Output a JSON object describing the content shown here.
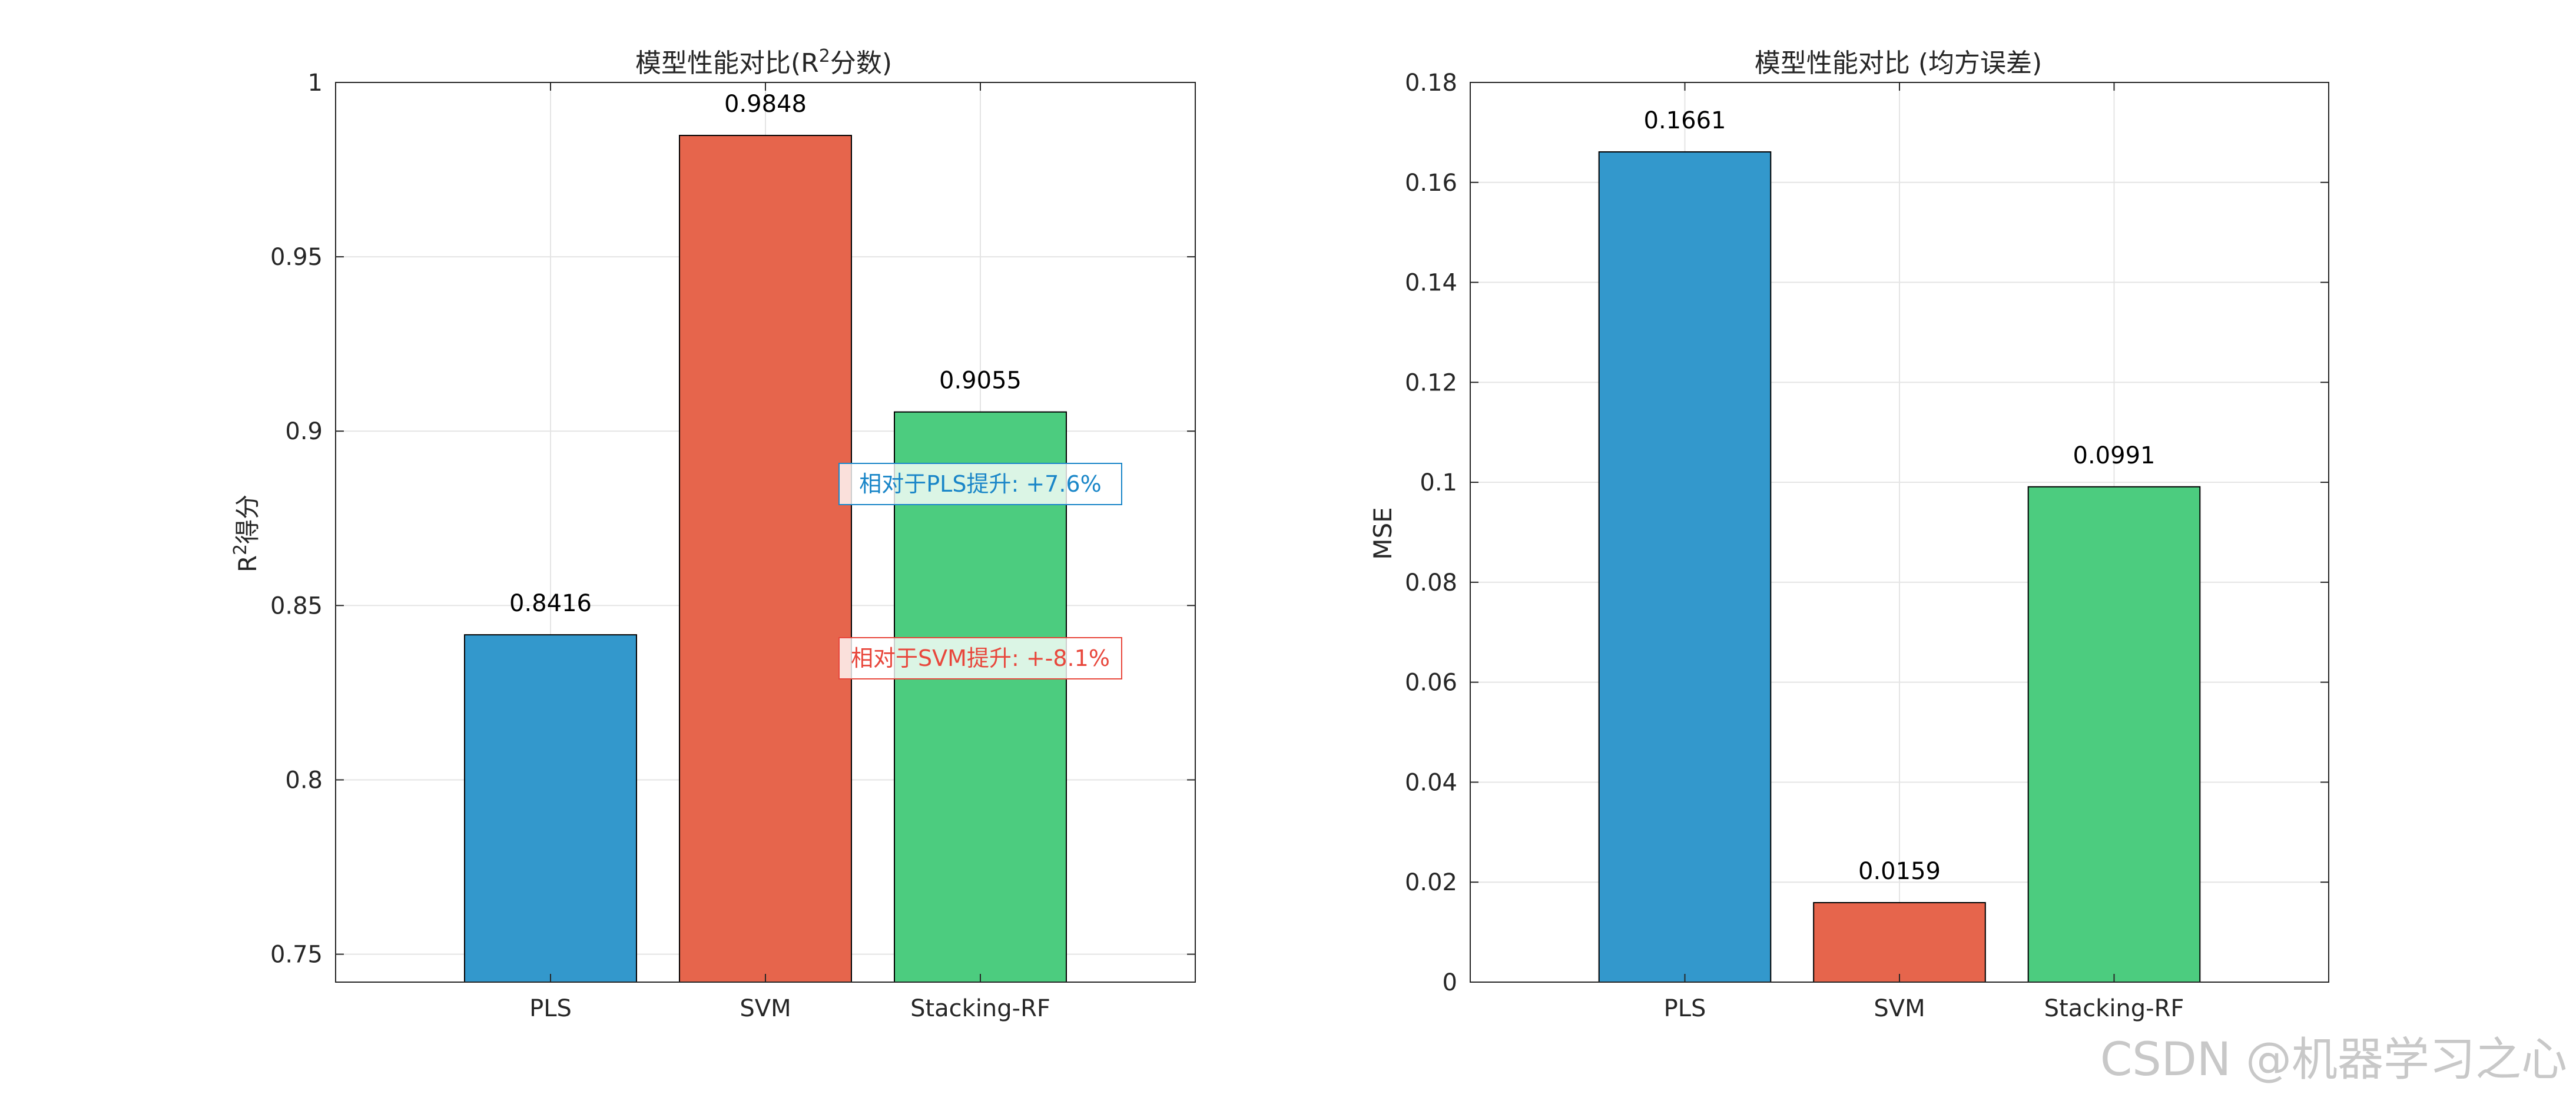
{
  "chart_data": [
    {
      "type": "bar",
      "title_prefix": "模型性能对比(R",
      "title_sup": "2",
      "title_suffix": "分数)",
      "ylabel_prefix": "R",
      "ylabel_sup": "2",
      "ylabel_suffix": "得分",
      "xlabel": "",
      "categories": [
        "PLS",
        "SVM",
        "Stacking-RF"
      ],
      "values": [
        0.8416,
        0.9848,
        0.9055
      ],
      "data_labels": [
        "0.8416",
        "0.9848",
        "0.9055"
      ],
      "colors": [
        "#3398cc",
        "#e6654c",
        "#4ccc7f"
      ],
      "ylim": [
        0.742,
        1.0
      ],
      "yticks": [
        0.75,
        0.8,
        0.85,
        0.9,
        0.95,
        1
      ],
      "ytick_labels": [
        "0.75",
        "0.8",
        "0.85",
        "0.9",
        "0.95",
        "1"
      ],
      "grid": true,
      "annotations": [
        {
          "text": "相对于PLS提升: +7.6%",
          "color": "#1a86c8",
          "attached_to": "Stacking-RF"
        },
        {
          "text": "相对于SVM提升: +-8.1%",
          "color": "#e8473c",
          "attached_to": "Stacking-RF"
        }
      ]
    },
    {
      "type": "bar",
      "title": "模型性能对比 (均方误差)",
      "ylabel": "MSE",
      "xlabel": "",
      "categories": [
        "PLS",
        "SVM",
        "Stacking-RF"
      ],
      "values": [
        0.1661,
        0.0159,
        0.0991
      ],
      "data_labels": [
        "0.1661",
        "0.0159",
        "0.0991"
      ],
      "colors": [
        "#3398cc",
        "#e6654c",
        "#4ccc7f"
      ],
      "ylim": [
        0,
        0.18
      ],
      "yticks": [
        0,
        0.02,
        0.04,
        0.06,
        0.08,
        0.1,
        0.12,
        0.14,
        0.16,
        0.18
      ],
      "ytick_labels": [
        "0",
        "0.02",
        "0.04",
        "0.06",
        "0.08",
        "0.1",
        "0.12",
        "0.14",
        "0.16",
        "0.18"
      ],
      "grid": true
    }
  ],
  "watermark": "CSDN @机器学习之心"
}
